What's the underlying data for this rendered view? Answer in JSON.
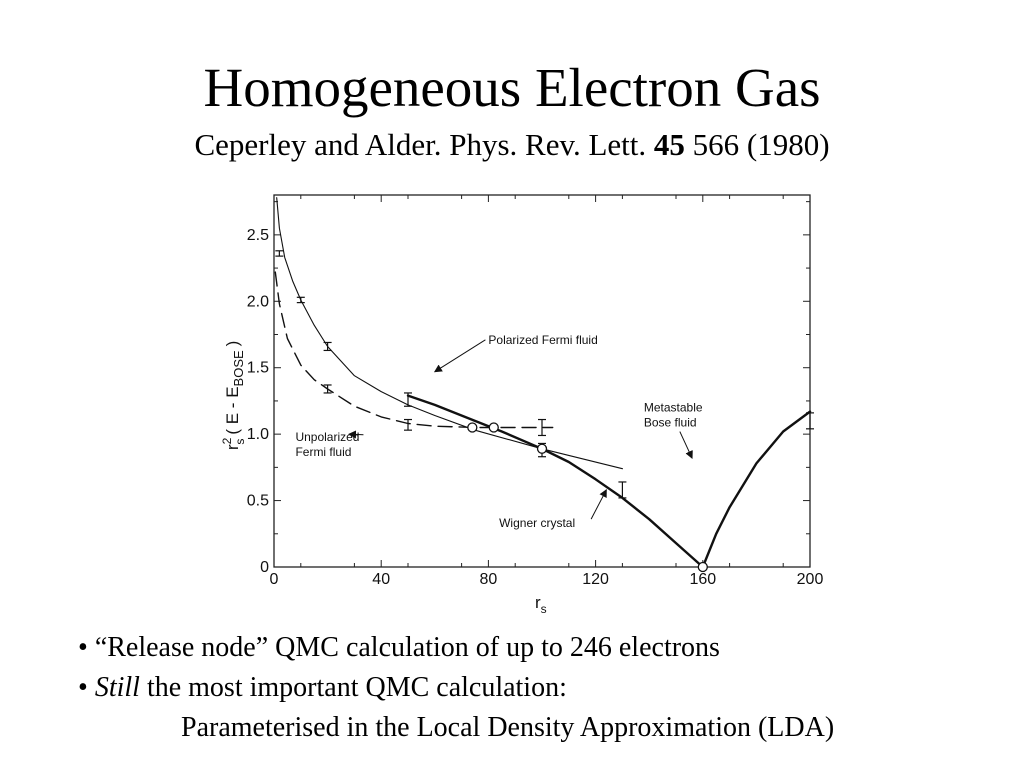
{
  "slide": {
    "title": "Homogeneous Electron Gas",
    "citation_prefix": "Ceperley and Alder. Phys. Rev. Lett.",
    "citation_volume": "45",
    "citation_suffix": "566 (1980)"
  },
  "bullets": [
    {
      "marker": "•",
      "text": "“Release node” QMC calculation of up to 246 electrons"
    },
    {
      "marker": "•",
      "italic": "Still",
      "text": "the most important QMC calculation:"
    },
    {
      "text": "Parameterised in the Local Density Approximation (LDA)"
    }
  ],
  "chart_data": {
    "type": "line",
    "xlabel": "r",
    "xlabel_sub": "s",
    "ylabel_parts": {
      "r": "r",
      "sup": "2",
      "sub": "s",
      "expr": "( E - E",
      "expr_sub": "BOSE",
      "close": ")"
    },
    "xlim": [
      0,
      200
    ],
    "ylim": [
      0,
      2.8
    ],
    "x_ticks": [
      0,
      40,
      80,
      120,
      160,
      200
    ],
    "x_tick_labels": [
      "0",
      "40",
      "80",
      "120",
      "160",
      "200"
    ],
    "y_ticks": [
      0,
      0.5,
      1.0,
      1.5,
      2.0,
      2.5
    ],
    "y_tick_labels": [
      "0",
      "0.5",
      "1.0",
      "1.5",
      "2.0",
      "2.5"
    ],
    "series": [
      {
        "name": "Polarized Fermi fluid",
        "style": "solid-thin",
        "x": [
          1,
          2,
          4,
          7,
          10,
          15,
          20,
          30,
          40,
          50,
          60,
          75,
          100,
          130
        ],
        "y": [
          2.78,
          2.55,
          2.33,
          2.15,
          2.01,
          1.82,
          1.66,
          1.44,
          1.32,
          1.22,
          1.14,
          1.03,
          0.89,
          0.74
        ]
      },
      {
        "name": "Unpolarized Fermi fluid",
        "style": "dashed",
        "x": [
          0.5,
          2,
          5,
          10,
          15,
          20,
          30,
          40,
          50,
          60,
          75,
          85,
          100,
          104
        ],
        "y": [
          2.22,
          1.98,
          1.72,
          1.52,
          1.41,
          1.34,
          1.21,
          1.13,
          1.08,
          1.06,
          1.05,
          1.05,
          1.05,
          1.05
        ]
      },
      {
        "name": "Wigner crystal",
        "style": "solid-thick",
        "x": [
          50,
          60,
          75,
          85,
          100,
          110,
          120,
          130,
          140,
          150,
          160
        ],
        "y": [
          1.29,
          1.22,
          1.1,
          1.02,
          0.89,
          0.79,
          0.66,
          0.52,
          0.36,
          0.18,
          0.0
        ]
      },
      {
        "name": "Metastable Bose fluid",
        "style": "solid-thick",
        "x": [
          160,
          165,
          170,
          180,
          190,
          200
        ],
        "y": [
          0.0,
          0.25,
          0.45,
          0.78,
          1.02,
          1.17
        ]
      }
    ],
    "error_bars": [
      {
        "x": 2,
        "y": 2.36,
        "err": 0.02
      },
      {
        "x": 10,
        "y": 2.01,
        "err": 0.02
      },
      {
        "x": 20,
        "y": 1.66,
        "err": 0.03
      },
      {
        "x": 20,
        "y": 1.34,
        "err": 0.03
      },
      {
        "x": 50,
        "y": 1.26,
        "err": 0.05
      },
      {
        "x": 50,
        "y": 1.07,
        "err": 0.04
      },
      {
        "x": 100,
        "y": 1.05,
        "err": 0.06
      },
      {
        "x": 100,
        "y": 0.88,
        "err": 0.05
      },
      {
        "x": 130,
        "y": 0.58,
        "err": 0.06
      },
      {
        "x": 200,
        "y": 1.1,
        "err": 0.06
      }
    ],
    "open_circles": [
      {
        "x": 74,
        "y": 1.05
      },
      {
        "x": 82,
        "y": 1.05
      },
      {
        "x": 100,
        "y": 0.89
      },
      {
        "x": 160,
        "y": 0.0
      }
    ],
    "annotations": [
      {
        "lines": [
          "Polarized Fermi fluid"
        ],
        "text_x": 40,
        "text_y": 1.68,
        "arrow_to_x": 30,
        "arrow_to_y": 1.47
      },
      {
        "lines": [
          "Unpolarized",
          "Fermi fluid"
        ],
        "text_x": 4,
        "text_y": 0.95,
        "arrow_to_x": 14,
        "arrow_to_y": 1.0
      },
      {
        "lines": [
          "Wigner crystal"
        ],
        "text_x": 42,
        "text_y": 0.3,
        "arrow_to_x": 62,
        "arrow_to_y": 0.58
      },
      {
        "lines": [
          "Metastable",
          "Bose fluid"
        ],
        "text_x": 69,
        "text_y": 1.17,
        "arrow_to_x": 78,
        "arrow_to_y": 0.82
      }
    ]
  }
}
